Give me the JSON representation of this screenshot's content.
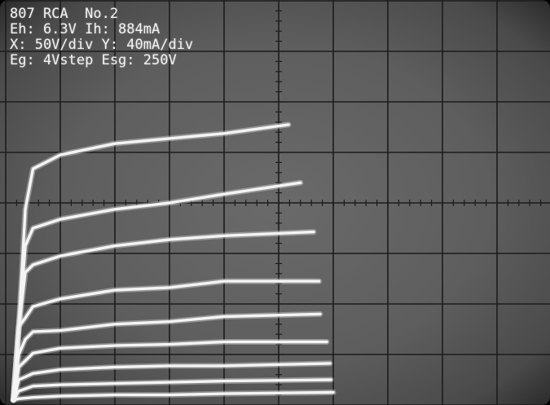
{
  "overlay": {
    "line1": "807 RCA  No.2",
    "line2": "Eh: 6.3V Ih: 884mA",
    "line3": "X: 50V/div Y: 40mA/div",
    "line4": "Eg: 4Vstep Esg: 250V"
  },
  "colors": {
    "screen": "#606060",
    "grid": "#1c1c1c",
    "trace": "#f4f4f4"
  },
  "chart_data": {
    "type": "line",
    "title": "",
    "xlabel": "",
    "ylabel": "",
    "x_units": "V",
    "y_units": "mA",
    "xlim": [
      0,
      500
    ],
    "ylim": [
      0,
      320
    ],
    "grid": true,
    "series": [
      {
        "points": [
          [
            7,
            4
          ],
          [
            12,
            62
          ],
          [
            18,
            155
          ],
          [
            25,
            187
          ],
          [
            50,
            198
          ],
          [
            100,
            207
          ],
          [
            150,
            211
          ],
          [
            200,
            215
          ],
          [
            259,
            222
          ]
        ]
      },
      {
        "points": [
          [
            7,
            4
          ],
          [
            12,
            62
          ],
          [
            18,
            126
          ],
          [
            25,
            140
          ],
          [
            50,
            147
          ],
          [
            100,
            155
          ],
          [
            150,
            160
          ],
          [
            200,
            167
          ],
          [
            270,
            176
          ]
        ]
      },
      {
        "points": [
          [
            7,
            4
          ],
          [
            12,
            62
          ],
          [
            18,
            105
          ],
          [
            25,
            111
          ],
          [
            50,
            118
          ],
          [
            100,
            126
          ],
          [
            150,
            131
          ],
          [
            200,
            134
          ],
          [
            282,
            137
          ]
        ]
      },
      {
        "points": [
          [
            7,
            4
          ],
          [
            12,
            62
          ],
          [
            18,
            69
          ],
          [
            25,
            78
          ],
          [
            50,
            84
          ],
          [
            100,
            91
          ],
          [
            150,
            93
          ],
          [
            200,
            98
          ],
          [
            287,
            98
          ]
        ]
      },
      {
        "points": [
          [
            7,
            4
          ],
          [
            12,
            40
          ],
          [
            18,
            52
          ],
          [
            25,
            58
          ],
          [
            50,
            59
          ],
          [
            100,
            64
          ],
          [
            150,
            66
          ],
          [
            200,
            70
          ],
          [
            288,
            72
          ]
        ]
      },
      {
        "points": [
          [
            7,
            4
          ],
          [
            12,
            30
          ],
          [
            25,
            41
          ],
          [
            50,
            45
          ],
          [
            100,
            47
          ],
          [
            150,
            48
          ],
          [
            200,
            50
          ],
          [
            294,
            50
          ]
        ]
      },
      {
        "points": [
          [
            7,
            4
          ],
          [
            12,
            20
          ],
          [
            25,
            25
          ],
          [
            50,
            28
          ],
          [
            100,
            30
          ],
          [
            150,
            31
          ],
          [
            200,
            31
          ],
          [
            297,
            33
          ]
        ]
      },
      {
        "points": [
          [
            7,
            4
          ],
          [
            12,
            11
          ],
          [
            25,
            15
          ],
          [
            50,
            16
          ],
          [
            100,
            17
          ],
          [
            150,
            18
          ],
          [
            200,
            19
          ],
          [
            298,
            20
          ]
        ]
      },
      {
        "points": [
          [
            7,
            4
          ],
          [
            12,
            5
          ],
          [
            25,
            6
          ],
          [
            50,
            7
          ],
          [
            100,
            8
          ],
          [
            150,
            8
          ],
          [
            200,
            9
          ],
          [
            300,
            10
          ]
        ]
      }
    ]
  }
}
